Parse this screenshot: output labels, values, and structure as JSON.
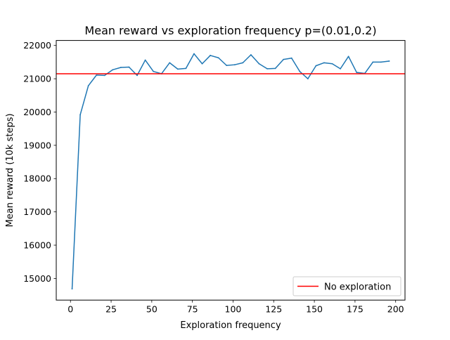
{
  "chart_data": {
    "type": "line",
    "title": "Mean reward vs exploration frequency p=(0.01,0.2)",
    "xlabel": "Exploration frequency",
    "ylabel": "Mean reward (10k steps)",
    "xlim": [
      -8.75,
      205.75
    ],
    "ylim": [
      14350,
      22150
    ],
    "xticks": [
      0,
      25,
      50,
      75,
      100,
      125,
      150,
      175,
      200
    ],
    "yticks": [
      15000,
      16000,
      17000,
      18000,
      19000,
      20000,
      21000,
      22000
    ],
    "grid": false,
    "legend": {
      "location": "lower-right"
    },
    "series": [
      {
        "color": "#1f77b4",
        "x": [
          1,
          6,
          11,
          16,
          21,
          26,
          31,
          36,
          41,
          46,
          51,
          56,
          61,
          66,
          71,
          76,
          81,
          86,
          91,
          96,
          101,
          106,
          111,
          116,
          121,
          126,
          131,
          136,
          141,
          146,
          151,
          156,
          161,
          166,
          171,
          176,
          181,
          186,
          191,
          196
        ],
        "y": [
          14690,
          19920,
          20790,
          21110,
          21100,
          21270,
          21340,
          21350,
          21100,
          21560,
          21220,
          21150,
          21480,
          21290,
          21310,
          21750,
          21450,
          21700,
          21630,
          21400,
          21420,
          21480,
          21720,
          21450,
          21300,
          21310,
          21580,
          21620,
          21220,
          21000,
          21390,
          21480,
          21450,
          21300,
          21670,
          21190,
          21160,
          21500,
          21500,
          21530
        ]
      }
    ],
    "reference_lines": [
      {
        "name": "No exploration",
        "orientation": "horizontal",
        "y": 21150,
        "color": "#ff0000"
      }
    ]
  }
}
